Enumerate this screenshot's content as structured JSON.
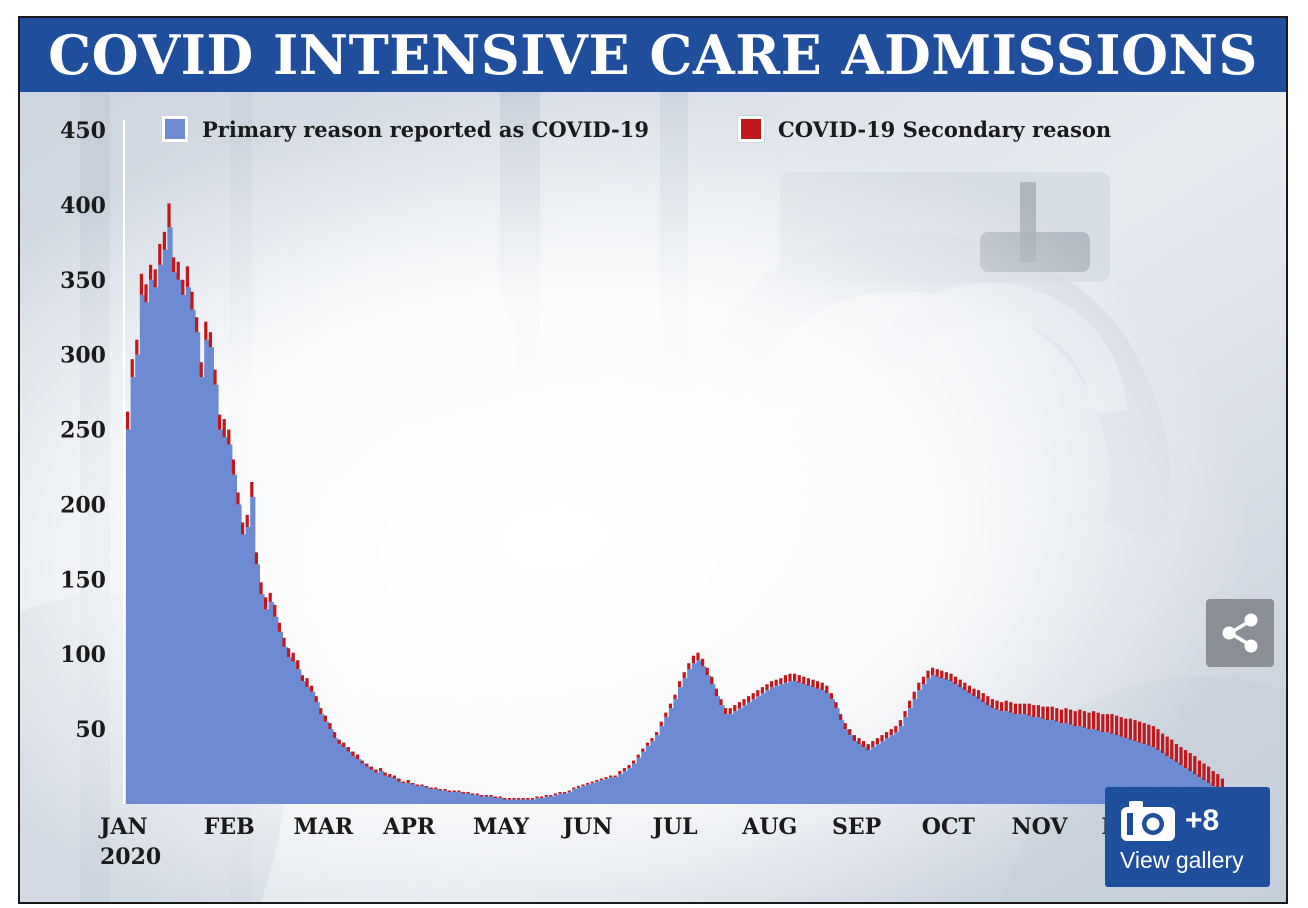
{
  "title": "COVID INTENSIVE CARE ADMISSIONS",
  "colors": {
    "title_bg": "#1f4e9c",
    "primary": "#6d8bd2",
    "secondary": "#c0181c",
    "gallery_bg": "#1f4e9c",
    "share_bg": "#8a8f96"
  },
  "legend": [
    {
      "label": "Primary reason reported as COVID-19",
      "color": "#6d8bd2"
    },
    {
      "label": "COVID-19 Secondary reason",
      "color": "#c0181c"
    }
  ],
  "gallery": {
    "count": "+8",
    "label": "View gallery",
    "icon": "camera-icon"
  },
  "share": {
    "icon": "share-icon"
  },
  "chart_data": {
    "type": "bar",
    "stacked": true,
    "title": "COVID INTENSIVE CARE ADMISSIONS",
    "xlabel": "",
    "ylabel": "",
    "ylim": [
      0,
      450
    ],
    "yticks": [
      50,
      100,
      150,
      200,
      250,
      300,
      350,
      400,
      450
    ],
    "month_labels": [
      "JAN",
      "FEB",
      "MAR",
      "APR",
      "MAY",
      "JUN",
      "JUL",
      "AUG",
      "SEP",
      "OCT",
      "NOV",
      "DEC"
    ],
    "year_label": "2020",
    "legend_position": "top",
    "grid": false,
    "series": [
      {
        "name": "Primary reason reported as COVID-19",
        "values": [
          250,
          285,
          300,
          340,
          335,
          350,
          345,
          360,
          370,
          385,
          355,
          350,
          340,
          345,
          330,
          315,
          285,
          310,
          305,
          280,
          250,
          245,
          240,
          220,
          200,
          180,
          185,
          205,
          160,
          140,
          130,
          135,
          125,
          115,
          105,
          98,
          95,
          90,
          82,
          78,
          75,
          68,
          60,
          55,
          50,
          44,
          40,
          38,
          35,
          32,
          30,
          27,
          25,
          23,
          21,
          22,
          19,
          18,
          17,
          15,
          14,
          14,
          13,
          12,
          12,
          11,
          10,
          10,
          9,
          9,
          8,
          8,
          8,
          7,
          7,
          6,
          6,
          5,
          5,
          5,
          4,
          4,
          3,
          3,
          3,
          3,
          3,
          3,
          3,
          4,
          4,
          5,
          5,
          6,
          7,
          7,
          8,
          10,
          11,
          12,
          13,
          14,
          15,
          16,
          17,
          18,
          18,
          20,
          22,
          24,
          27,
          31,
          35,
          39,
          42,
          46,
          52,
          58,
          64,
          70,
          78,
          84,
          90,
          94,
          96,
          92,
          86,
          80,
          72,
          66,
          60,
          60,
          62,
          64,
          66,
          68,
          70,
          72,
          74,
          76,
          78,
          79,
          80,
          81,
          82,
          82,
          81,
          80,
          79,
          78,
          77,
          76,
          74,
          70,
          64,
          56,
          50,
          46,
          42,
          40,
          38,
          36,
          38,
          40,
          42,
          44,
          46,
          48,
          52,
          58,
          64,
          70,
          76,
          80,
          84,
          86,
          85,
          84,
          83,
          82,
          80,
          78,
          76,
          74,
          72,
          70,
          68,
          66,
          64,
          63,
          62,
          62,
          61,
          60,
          60,
          60,
          59,
          58,
          58,
          57,
          56,
          56,
          55,
          54,
          54,
          53,
          52,
          52,
          51,
          50,
          50,
          49,
          48,
          48,
          47,
          46,
          45,
          44,
          43,
          42,
          41,
          40,
          39,
          38,
          36,
          34,
          32,
          30,
          28,
          26,
          24,
          22,
          20,
          18,
          16,
          14,
          12,
          10,
          8,
          6
        ]
      },
      {
        "name": "COVID-19 Secondary reason",
        "values": [
          12,
          12,
          10,
          14,
          12,
          10,
          12,
          14,
          12,
          16,
          10,
          12,
          10,
          14,
          12,
          10,
          10,
          12,
          10,
          10,
          10,
          12,
          10,
          10,
          8,
          8,
          8,
          10,
          8,
          8,
          8,
          6,
          8,
          6,
          6,
          6,
          6,
          6,
          4,
          6,
          4,
          4,
          4,
          4,
          4,
          4,
          3,
          3,
          3,
          3,
          3,
          2,
          2,
          2,
          2,
          2,
          2,
          2,
          2,
          2,
          1,
          2,
          1,
          1,
          1,
          1,
          1,
          1,
          1,
          1,
          1,
          1,
          1,
          1,
          1,
          1,
          1,
          1,
          1,
          1,
          1,
          1,
          1,
          1,
          1,
          1,
          1,
          1,
          1,
          1,
          1,
          1,
          1,
          1,
          1,
          1,
          1,
          1,
          1,
          1,
          1,
          1,
          1,
          1,
          1,
          1,
          1,
          2,
          2,
          2,
          2,
          2,
          2,
          2,
          2,
          2,
          3,
          3,
          3,
          3,
          4,
          4,
          4,
          5,
          5,
          5,
          5,
          5,
          5,
          4,
          4,
          4,
          4,
          4,
          4,
          4,
          4,
          4,
          4,
          4,
          4,
          4,
          4,
          5,
          5,
          5,
          5,
          5,
          5,
          5,
          5,
          5,
          5,
          4,
          4,
          4,
          4,
          4,
          4,
          4,
          4,
          4,
          4,
          4,
          4,
          4,
          4,
          4,
          4,
          4,
          5,
          5,
          5,
          5,
          5,
          5,
          5,
          5,
          5,
          5,
          5,
          5,
          5,
          5,
          5,
          6,
          6,
          6,
          6,
          6,
          6,
          7,
          7,
          7,
          7,
          7,
          8,
          8,
          8,
          8,
          9,
          9,
          9,
          9,
          10,
          10,
          10,
          11,
          11,
          11,
          12,
          12,
          12,
          12,
          13,
          13,
          13,
          13,
          14,
          14,
          14,
          14,
          14,
          14,
          14,
          13,
          13,
          13,
          12,
          12,
          12,
          12,
          12,
          11,
          11,
          11,
          10,
          10,
          9
        ]
      }
    ]
  }
}
